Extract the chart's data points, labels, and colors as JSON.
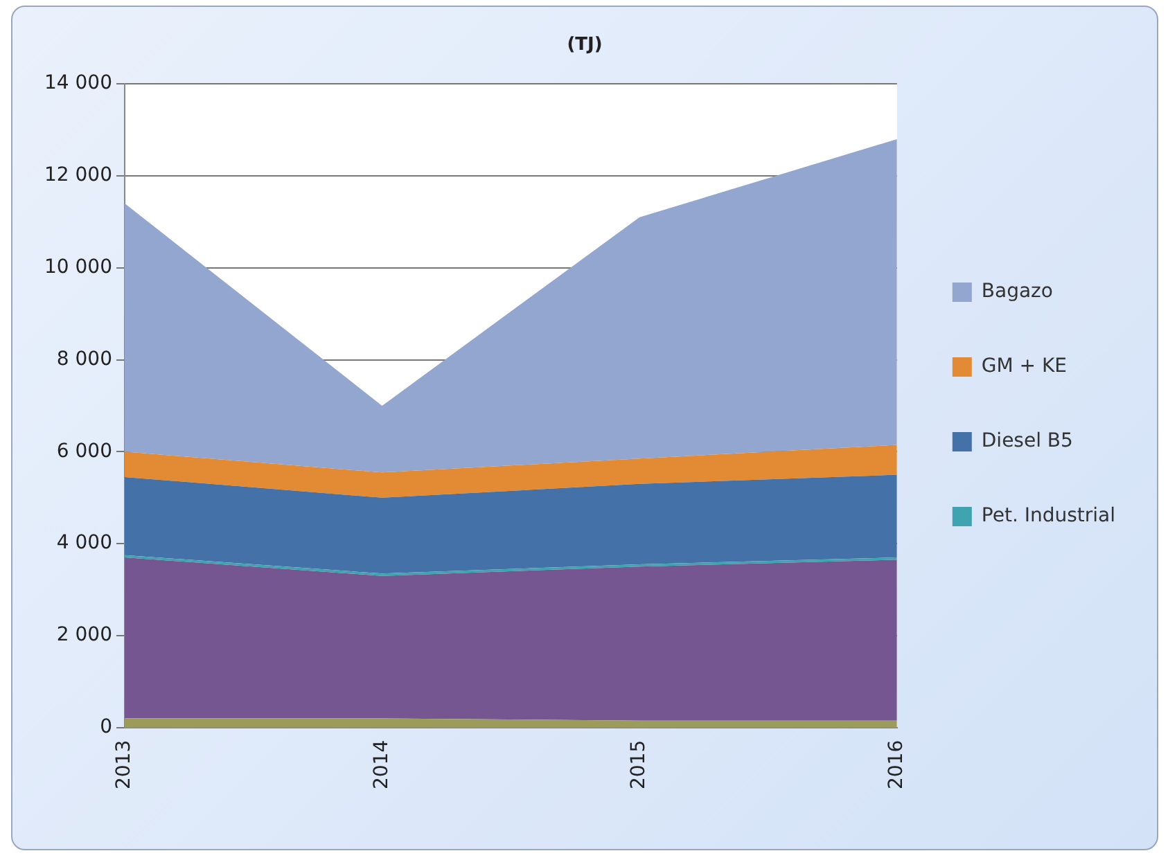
{
  "chart_data": {
    "type": "area",
    "title": "(TJ)",
    "stacked": true,
    "categories": [
      "2013",
      "2014",
      "2015",
      "2016"
    ],
    "series": [
      {
        "color": "#9b9b5a",
        "values": [
          200,
          200,
          150,
          150
        ]
      },
      {
        "color": "#755691",
        "values": [
          3500,
          3100,
          3350,
          3500
        ]
      },
      {
        "name": "Pet. Industrial",
        "color": "#3fa3b0",
        "values": [
          50,
          50,
          50,
          50
        ]
      },
      {
        "name": "Diesel B5",
        "color": "#4472a8",
        "values": [
          1700,
          1650,
          1750,
          1800
        ]
      },
      {
        "name": "GM + KE",
        "color": "#e38a34",
        "values": [
          550,
          550,
          550,
          650
        ]
      },
      {
        "name": "Bagazo",
        "color": "#93a6cf",
        "values": [
          5400,
          1450,
          5250,
          6650
        ]
      }
    ],
    "ylim": [
      0,
      14000
    ],
    "yticks": [
      {
        "value": 0,
        "label": "0"
      },
      {
        "value": 2000,
        "label": "2 000"
      },
      {
        "value": 4000,
        "label": "4 000"
      },
      {
        "value": 6000,
        "label": "6 000"
      },
      {
        "value": 8000,
        "label": "8 000"
      },
      {
        "value": 10000,
        "label": "10 000"
      },
      {
        "value": 12000,
        "label": "12 000"
      },
      {
        "value": 14000,
        "label": "14 000"
      }
    ],
    "grid": "y",
    "legend": "right"
  }
}
